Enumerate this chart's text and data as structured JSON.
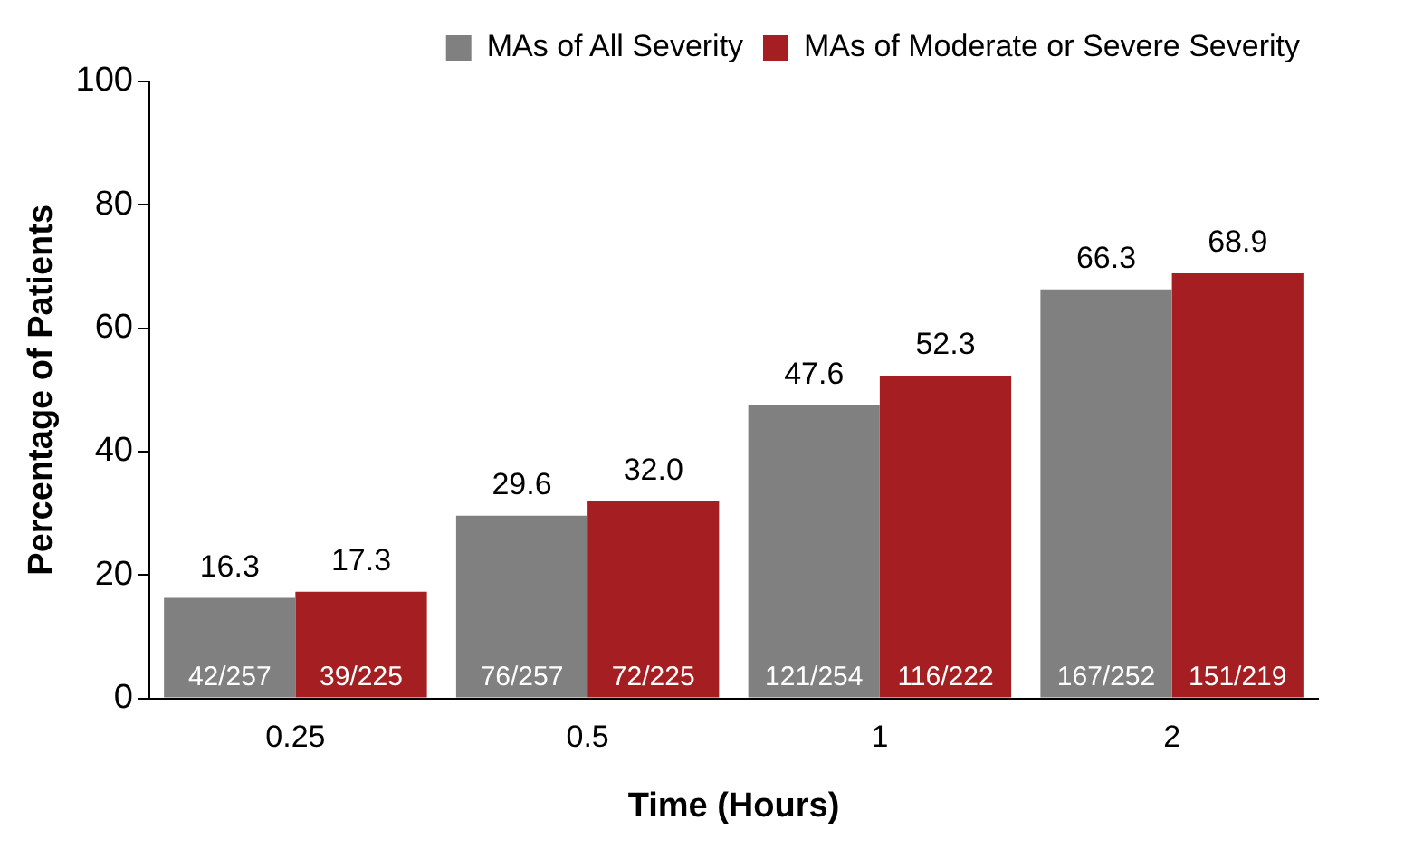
{
  "chart_data": {
    "type": "bar",
    "xlabel": "Time (Hours)",
    "ylabel": "Percentage of Patients",
    "categories": [
      "0.25",
      "0.5",
      "1",
      "2"
    ],
    "series": [
      {
        "name": "MAs of All Severity",
        "color": "#808080",
        "values": [
          16.3,
          29.6,
          47.6,
          66.3
        ],
        "value_labels": [
          "16.3",
          "29.6",
          "47.6",
          "66.3"
        ]
      },
      {
        "name": "MAs of Moderate or Severe Severity",
        "color": "#a51e22",
        "values": [
          17.3,
          32.0,
          52.3,
          68.9
        ],
        "value_labels": [
          "17.3",
          "32.0",
          "52.3",
          "68.9"
        ]
      }
    ],
    "annotations": [
      "42/257",
      "39/225",
      "76/257",
      "72/225",
      "121/254",
      "116/222",
      "167/252",
      "151/219"
    ],
    "ylim": [
      0,
      100
    ],
    "yticks": [
      0,
      20,
      40,
      60,
      80,
      100
    ],
    "grid": false,
    "legend": "top right"
  }
}
